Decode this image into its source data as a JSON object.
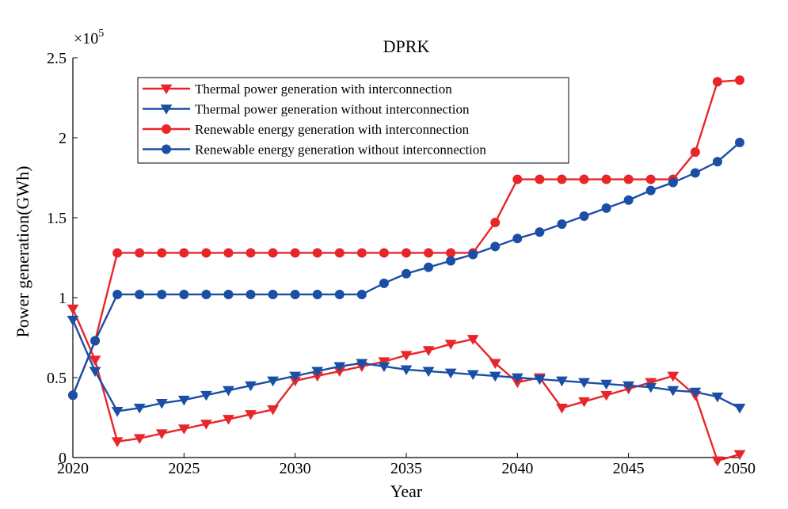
{
  "chart_data": {
    "type": "line",
    "title": "DPRK",
    "xlabel": "Year",
    "ylabel": "Power generation(GWh)",
    "y_multiplier_base": "×10",
    "y_multiplier_exponent": "5",
    "xlim": [
      2020,
      2050
    ],
    "ylim": [
      0,
      2.5
    ],
    "xticks": [
      "2020",
      "2025",
      "2030",
      "2035",
      "2040",
      "2045",
      "2050"
    ],
    "yticks": [
      "0",
      "0.5",
      "1",
      "1.5",
      "2",
      "2.5"
    ],
    "grid": false,
    "legend_position": "top-left",
    "x": [
      2020,
      2021,
      2022,
      2023,
      2024,
      2025,
      2026,
      2027,
      2028,
      2029,
      2030,
      2031,
      2032,
      2033,
      2034,
      2035,
      2036,
      2037,
      2038,
      2039,
      2040,
      2041,
      2042,
      2043,
      2044,
      2045,
      2046,
      2047,
      2048,
      2049,
      2050
    ],
    "series": [
      {
        "name": "Thermal power generation with interconnection",
        "color": "#e8262a",
        "marker": "triangle-down",
        "values": [
          0.93,
          0.61,
          0.1,
          0.12,
          0.15,
          0.18,
          0.21,
          0.24,
          0.27,
          0.3,
          0.48,
          0.51,
          0.54,
          0.57,
          0.6,
          0.64,
          0.67,
          0.71,
          0.74,
          0.59,
          0.47,
          0.5,
          0.31,
          0.35,
          0.39,
          0.43,
          0.47,
          0.51,
          0.39,
          -0.02,
          0.02
        ]
      },
      {
        "name": "Thermal power generation without interconnection",
        "color": "#1b4fa5",
        "marker": "triangle-down",
        "values": [
          0.86,
          0.54,
          0.29,
          0.31,
          0.34,
          0.36,
          0.39,
          0.42,
          0.45,
          0.48,
          0.51,
          0.54,
          0.57,
          0.59,
          0.57,
          0.55,
          0.54,
          0.53,
          0.52,
          0.51,
          0.5,
          0.49,
          0.48,
          0.47,
          0.46,
          0.45,
          0.44,
          0.42,
          0.41,
          0.38,
          0.31
        ]
      },
      {
        "name": "Renewable energy generation with interconnection",
        "color": "#e8262a",
        "marker": "circle",
        "values": [
          0.39,
          0.73,
          1.28,
          1.28,
          1.28,
          1.28,
          1.28,
          1.28,
          1.28,
          1.28,
          1.28,
          1.28,
          1.28,
          1.28,
          1.28,
          1.28,
          1.28,
          1.28,
          1.28,
          1.47,
          1.74,
          1.74,
          1.74,
          1.74,
          1.74,
          1.74,
          1.74,
          1.74,
          1.91,
          2.35,
          2.36
        ]
      },
      {
        "name": "Renewable energy generation without interconnection",
        "color": "#1b4fa5",
        "marker": "circle",
        "values": [
          0.39,
          0.73,
          1.02,
          1.02,
          1.02,
          1.02,
          1.02,
          1.02,
          1.02,
          1.02,
          1.02,
          1.02,
          1.02,
          1.02,
          1.09,
          1.15,
          1.19,
          1.23,
          1.27,
          1.32,
          1.37,
          1.41,
          1.46,
          1.51,
          1.56,
          1.61,
          1.67,
          1.72,
          1.78,
          1.85,
          1.97
        ]
      }
    ]
  }
}
